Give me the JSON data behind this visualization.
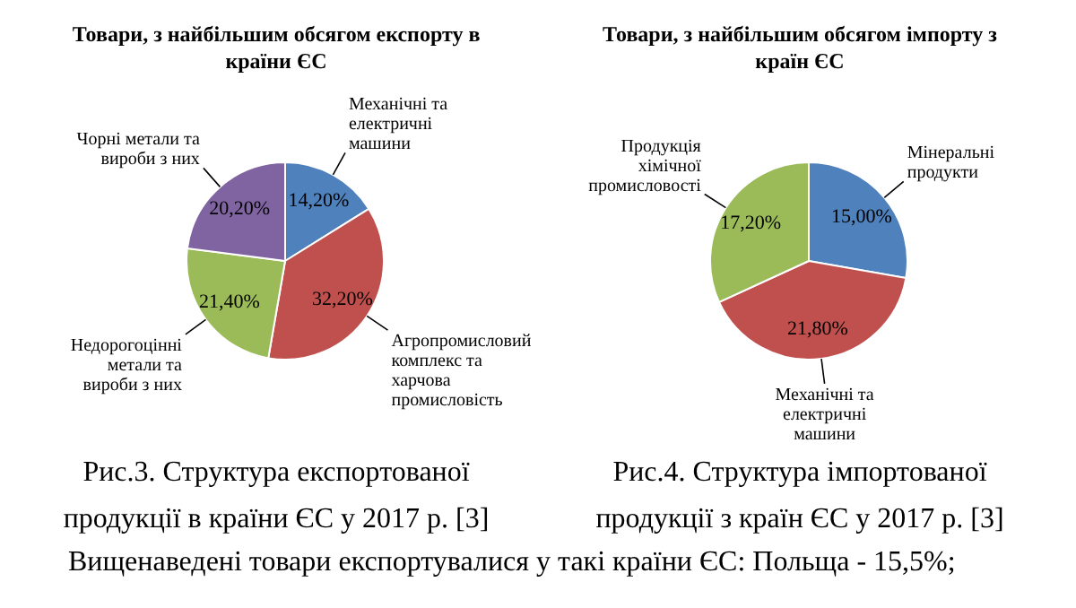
{
  "chart_data": [
    {
      "type": "pie",
      "title": "Товари, з найбільшим обсягом експорту в країни ЄС",
      "categories": [
        "Механічні та електричні машини",
        "Агропромисловий комплекс та харчова промисловість",
        "Недорогоцінні метали та вироби з них",
        "Чорні метали та вироби з них"
      ],
      "values": [
        14.2,
        32.2,
        21.4,
        20.2
      ],
      "colors": [
        "#4f81bd",
        "#c0504d",
        "#9bbb59",
        "#8064a2"
      ],
      "value_labels": [
        "14,20%",
        "32,20%",
        "21,40%",
        "20,20%"
      ],
      "annotations": [
        "Рис.3. Структура експортованої продукції в країни ЄС у 2017 р. [3]",
        "Вищенаведені товари експортувалися у такі країни ЄС: Польща - 15,5%;"
      ]
    },
    {
      "type": "pie",
      "title": "Товари, з найбільшим обсягом імпорту з країн ЄС",
      "categories": [
        "Мінеральні продукти",
        "Механічні та електричні машини",
        "Продукція хімічної промисловості"
      ],
      "values": [
        15.0,
        21.8,
        17.2
      ],
      "colors": [
        "#4f81bd",
        "#c0504d",
        "#9bbb59"
      ],
      "value_labels": [
        "15,00%",
        "21,80%",
        "17,20%"
      ],
      "annotations": [
        "Рис.4. Структура імпортованої продукції з країн ЄС у 2017 р. [3]"
      ]
    }
  ]
}
